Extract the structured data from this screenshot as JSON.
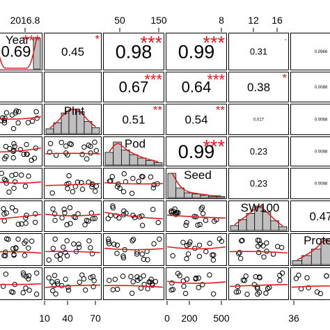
{
  "chart_data": {
    "type": "scatter-matrix",
    "title": "",
    "variables": [
      "Year",
      "Plnt",
      "Pod",
      "Seed",
      "SW100",
      "Protein"
    ],
    "top_ticks": [
      {
        "col": 0,
        "labels": [
          "2016.8"
        ]
      },
      {
        "col": 2,
        "labels": [
          "50",
          "150"
        ]
      },
      {
        "col": 3,
        "labels": [
          "8"
        ]
      },
      {
        "col": 4,
        "labels": [
          "12",
          "16"
        ]
      }
    ],
    "bottom_ticks": [
      {
        "col": 0,
        "labels": [
          "10"
        ]
      },
      {
        "col": 1,
        "labels": [
          "40",
          "70"
        ]
      },
      {
        "col": 3,
        "labels": [
          "0",
          "200",
          "500"
        ]
      },
      {
        "col": 5,
        "labels": [
          "36"
        ]
      }
    ],
    "correlations": [
      {
        "row": 0,
        "col": 0,
        "text": "0.69",
        "stars": "***",
        "size": "large"
      },
      {
        "row": 0,
        "col": 1,
        "text": "0.45",
        "stars": "*",
        "size": "medium"
      },
      {
        "row": 0,
        "col": 2,
        "text": "0.98",
        "stars": "***",
        "size": "xlarge"
      },
      {
        "row": 0,
        "col": 3,
        "text": "0.99",
        "stars": "***",
        "size": "xlarge"
      },
      {
        "row": 0,
        "col": 4,
        "text": "0.31",
        "stars": ".",
        "size": "small"
      },
      {
        "row": 0,
        "col": 5,
        "text": "0.0966",
        "stars": "",
        "size": "tiny"
      },
      {
        "row": 1,
        "col": 2,
        "text": "0.67",
        "stars": "***",
        "size": "large"
      },
      {
        "row": 1,
        "col": 3,
        "text": "0.64",
        "stars": "***",
        "size": "large"
      },
      {
        "row": 1,
        "col": 4,
        "text": "0.38",
        "stars": "*",
        "size": "medium"
      },
      {
        "row": 1,
        "col": 5,
        "text": "0.0088",
        "stars": "",
        "size": "tiny"
      },
      {
        "row": 2,
        "col": 2,
        "text": "0.51",
        "stars": "**",
        "size": "medium"
      },
      {
        "row": 2,
        "col": 3,
        "text": "0.54",
        "stars": "**",
        "size": "medium"
      },
      {
        "row": 2,
        "col": 4,
        "text": "0.017",
        "stars": "",
        "size": "tiny"
      },
      {
        "row": 2,
        "col": 5,
        "text": "0.0068",
        "stars": "",
        "size": "tiny"
      },
      {
        "row": 3,
        "col": 3,
        "text": "0.99",
        "stars": "***",
        "size": "xlarge"
      },
      {
        "row": 3,
        "col": 4,
        "text": "0.23",
        "stars": "",
        "size": "small"
      },
      {
        "row": 3,
        "col": 5,
        "text": "0.0088",
        "stars": "",
        "size": "tiny"
      },
      {
        "row": 4,
        "col": 4,
        "text": "0.23",
        "stars": "",
        "size": "small"
      },
      {
        "row": 4,
        "col": 5,
        "text": "0.0088",
        "stars": "",
        "size": "tiny"
      },
      {
        "row": 5,
        "col": 5,
        "text": "0.47",
        "stars": "",
        "size": "medium"
      }
    ],
    "diagonal": [
      {
        "row": 0,
        "label": "Year",
        "bars": [
          1.0,
          0.0,
          0.0,
          0.0,
          0.0,
          0.0,
          1.0
        ]
      },
      {
        "row": 2,
        "label": "Plnt",
        "bars": [
          0.2,
          0.45,
          0.85,
          1.0,
          0.9,
          0.5,
          0.25
        ]
      },
      {
        "row": 3,
        "label": "Pod",
        "bars": [
          0.55,
          1.0,
          0.65,
          0.45,
          0.3,
          0.2,
          0.1
        ]
      },
      {
        "row": 4,
        "label": "Seed",
        "bars": [
          1.0,
          0.4,
          0.2,
          0.15,
          0.1,
          0.05,
          0.05
        ]
      },
      {
        "row": 5,
        "label": "SW100",
        "bars": [
          0.2,
          0.45,
          0.7,
          1.0,
          0.75,
          0.4,
          0.15
        ]
      },
      {
        "row": 6,
        "label": "Protein",
        "bars": [
          0.15,
          0.35,
          0.6,
          1.0,
          0.7,
          0.3
        ]
      }
    ],
    "series_colors": {
      "fit": "#e31a1c",
      "points": "#000000",
      "bars": "#bfbfbf",
      "stars": "#e31a1c"
    }
  }
}
